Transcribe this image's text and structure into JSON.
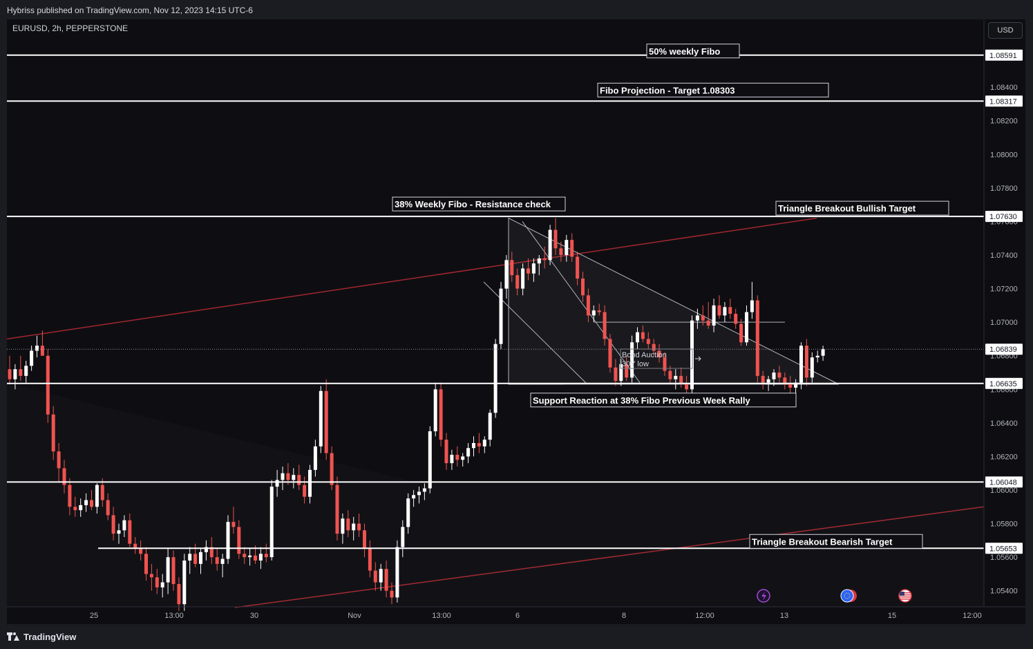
{
  "publisher_line": "Hybriss published on TradingView.com, Nov 12, 2023 14:15 UTC-6",
  "footer": {
    "brand": "TradingView"
  },
  "colors": {
    "bull": "#ffffff",
    "bear": "#f05350",
    "channel": "#a3262f",
    "hline": "#ffffff",
    "background": "#0e0e12",
    "icon_purple": "#a64ad8",
    "icon_red": "#d93640",
    "icon_blue": "#2962ff"
  },
  "chart_data": {
    "type": "candlestick",
    "symbol": "EURUSD, 2h, PEPPERSTONE",
    "currency": "USD",
    "ylim": [
      1.053,
      1.088
    ],
    "xlim": [
      "Oct 23 18:00",
      "Nov 15 20:00"
    ],
    "current_price": 1.06839,
    "x_ticks": [
      "25",
      "13:00",
      "30",
      "Nov",
      "13:00",
      "6",
      "8",
      "12:00",
      "13",
      "15",
      "12:00"
    ],
    "y_ticks": [
      1.084,
      1.082,
      1.08,
      1.078,
      1.076,
      1.074,
      1.072,
      1.07,
      1.068,
      1.066,
      1.064,
      1.062,
      1.06,
      1.058,
      1.056,
      1.054
    ],
    "horizontal_levels": [
      {
        "price": 1.08591,
        "label": "1.08591"
      },
      {
        "price": 1.08317,
        "label": "1.08317"
      },
      {
        "price": 1.0763,
        "label": "1.07630"
      },
      {
        "price": 1.06635,
        "label": "1.06635"
      },
      {
        "price": 1.06048,
        "label": "1.06048"
      },
      {
        "price": 1.05653,
        "label": "1.05653"
      }
    ],
    "annotations": [
      {
        "text": "50% weekly Fibo",
        "level": 1.08591
      },
      {
        "text": "Fibo Projection - Target 1.08303",
        "level": 1.08317
      },
      {
        "text": "38% Weekly Fibo - Resistance check",
        "level": 1.0763
      },
      {
        "text": "Triangle Breakout Bullish Target",
        "level": 1.0763
      },
      {
        "text": "Support Reaction at 38% Fibo Previous Week Rally",
        "level": 1.06635
      },
      {
        "text": "Triangle Breakout Bearish Target",
        "level": 1.05653
      },
      {
        "text": "Bond Auction",
        "level": 1.068
      },
      {
        "text": "30Y low",
        "level": 1.0675
      }
    ],
    "candles": [
      [
        1.0672,
        1.068,
        1.0663,
        1.0666
      ],
      [
        1.0666,
        1.0675,
        1.066,
        1.0672
      ],
      [
        1.0672,
        1.068,
        1.0665,
        1.0668
      ],
      [
        1.0668,
        1.0677,
        1.0664,
        1.0674
      ],
      [
        1.0674,
        1.0686,
        1.0671,
        1.0683
      ],
      [
        1.0683,
        1.0692,
        1.0679,
        1.0686
      ],
      [
        1.0686,
        1.0695,
        1.0682,
        1.068
      ],
      [
        1.068,
        1.0684,
        1.064,
        1.0645
      ],
      [
        1.0645,
        1.065,
        1.0618,
        1.0623
      ],
      [
        1.0623,
        1.0628,
        1.0605,
        1.0613
      ],
      [
        1.0613,
        1.0618,
        1.0598,
        1.0603
      ],
      [
        1.0603,
        1.0607,
        1.0585,
        1.059
      ],
      [
        1.059,
        1.0596,
        1.0584,
        1.0588
      ],
      [
        1.0588,
        1.0595,
        1.0584,
        1.0591
      ],
      [
        1.0591,
        1.0598,
        1.0587,
        1.0594
      ],
      [
        1.0594,
        1.06,
        1.0588,
        1.059
      ],
      [
        1.059,
        1.0604,
        1.0586,
        1.0603
      ],
      [
        1.0603,
        1.0607,
        1.059,
        1.0594
      ],
      [
        1.0594,
        1.0598,
        1.0582,
        1.0585
      ],
      [
        1.0585,
        1.059,
        1.057,
        1.0574
      ],
      [
        1.0574,
        1.058,
        1.0568,
        1.0576
      ],
      [
        1.0576,
        1.0585,
        1.0572,
        1.0582
      ],
      [
        1.0582,
        1.0586,
        1.0566,
        1.0568
      ],
      [
        1.0568,
        1.0572,
        1.0562,
        1.0565
      ],
      [
        1.0565,
        1.057,
        1.0558,
        1.0562
      ],
      [
        1.0562,
        1.0566,
        1.0546,
        1.055
      ],
      [
        1.055,
        1.0556,
        1.054,
        1.0548
      ],
      [
        1.0548,
        1.0553,
        1.0538,
        1.0542
      ],
      [
        1.0542,
        1.055,
        1.0536,
        1.0545
      ],
      [
        1.0545,
        1.0565,
        1.0538,
        1.056
      ],
      [
        1.056,
        1.0564,
        1.054,
        1.0544
      ],
      [
        1.0544,
        1.0548,
        1.0528,
        1.0532
      ],
      [
        1.0532,
        1.0562,
        1.0528,
        1.0558
      ],
      [
        1.0558,
        1.0566,
        1.055,
        1.0562
      ],
      [
        1.0562,
        1.0568,
        1.0554,
        1.0556
      ],
      [
        1.0556,
        1.0565,
        1.055,
        1.0563
      ],
      [
        1.0563,
        1.057,
        1.0558,
        1.0566
      ],
      [
        1.0566,
        1.0572,
        1.0556,
        1.056
      ],
      [
        1.056,
        1.0565,
        1.0552,
        1.0556
      ],
      [
        1.0556,
        1.0562,
        1.0548,
        1.0559
      ],
      [
        1.0559,
        1.0585,
        1.0556,
        1.0581
      ],
      [
        1.0581,
        1.059,
        1.0574,
        1.0578
      ],
      [
        1.0578,
        1.0582,
        1.0559,
        1.0562
      ],
      [
        1.0562,
        1.0566,
        1.0556,
        1.056
      ],
      [
        1.056,
        1.0565,
        1.0555,
        1.0561
      ],
      [
        1.0561,
        1.0567,
        1.0556,
        1.0558
      ],
      [
        1.0558,
        1.0566,
        1.0553,
        1.0562
      ],
      [
        1.0562,
        1.0568,
        1.0557,
        1.056
      ],
      [
        1.056,
        1.0606,
        1.0558,
        1.0602
      ],
      [
        1.0602,
        1.0612,
        1.0596,
        1.0606
      ],
      [
        1.0606,
        1.0614,
        1.06,
        1.061
      ],
      [
        1.061,
        1.0616,
        1.0603,
        1.0606
      ],
      [
        1.0606,
        1.0613,
        1.0601,
        1.0609
      ],
      [
        1.0609,
        1.0615,
        1.06,
        1.0603
      ],
      [
        1.0603,
        1.0608,
        1.0592,
        1.0596
      ],
      [
        1.0596,
        1.0615,
        1.0592,
        1.0612
      ],
      [
        1.0612,
        1.063,
        1.0608,
        1.0626
      ],
      [
        1.0626,
        1.0662,
        1.0622,
        1.0659
      ],
      [
        1.0659,
        1.0666,
        1.0618,
        1.0622
      ],
      [
        1.0622,
        1.0626,
        1.06,
        1.0603
      ],
      [
        1.0603,
        1.0608,
        1.057,
        1.0574
      ],
      [
        1.0574,
        1.0586,
        1.0568,
        1.0583
      ],
      [
        1.0583,
        1.0588,
        1.0572,
        1.0576
      ],
      [
        1.0576,
        1.0584,
        1.057,
        1.058
      ],
      [
        1.058,
        1.0586,
        1.0572,
        1.0576
      ],
      [
        1.0576,
        1.058,
        1.056,
        1.0565
      ],
      [
        1.0565,
        1.057,
        1.0548,
        1.0552
      ],
      [
        1.0552,
        1.0557,
        1.054,
        1.0545
      ],
      [
        1.0545,
        1.0556,
        1.054,
        1.0553
      ],
      [
        1.0553,
        1.0558,
        1.0536,
        1.054
      ],
      [
        1.054,
        1.0545,
        1.0532,
        1.0536
      ],
      [
        1.0536,
        1.057,
        1.0533,
        1.0566
      ],
      [
        1.0566,
        1.0582,
        1.056,
        1.0578
      ],
      [
        1.0578,
        1.0598,
        1.0574,
        1.0595
      ],
      [
        1.0595,
        1.06,
        1.059,
        1.0597
      ],
      [
        1.0597,
        1.0602,
        1.0592,
        1.0599
      ],
      [
        1.0599,
        1.0604,
        1.0594,
        1.0601
      ],
      [
        1.0601,
        1.0638,
        1.0598,
        1.0635
      ],
      [
        1.0635,
        1.0664,
        1.0632,
        1.066
      ],
      [
        1.066,
        1.0664,
        1.0626,
        1.063
      ],
      [
        1.063,
        1.0634,
        1.0612,
        1.0616
      ],
      [
        1.0616,
        1.0624,
        1.0612,
        1.0621
      ],
      [
        1.0621,
        1.0626,
        1.0614,
        1.0618
      ],
      [
        1.0618,
        1.0622,
        1.0614,
        1.062
      ],
      [
        1.062,
        1.0628,
        1.0616,
        1.0625
      ],
      [
        1.0625,
        1.0632,
        1.062,
        1.0628
      ],
      [
        1.0628,
        1.0634,
        1.0622,
        1.0626
      ],
      [
        1.0626,
        1.0632,
        1.0622,
        1.063
      ],
      [
        1.063,
        1.0648,
        1.0626,
        1.0646
      ],
      [
        1.0646,
        1.069,
        1.0643,
        1.0687
      ],
      [
        1.0687,
        1.0724,
        1.0684,
        1.072
      ],
      [
        1.072,
        1.074,
        1.0714,
        1.0737
      ],
      [
        1.0737,
        1.0742,
        1.0724,
        1.0728
      ],
      [
        1.0728,
        1.0732,
        1.0716,
        1.072
      ],
      [
        1.072,
        1.0735,
        1.0716,
        1.0732
      ],
      [
        1.0732,
        1.0738,
        1.0725,
        1.0729
      ],
      [
        1.0729,
        1.0738,
        1.0724,
        1.0735
      ],
      [
        1.0735,
        1.074,
        1.0728,
        1.0738
      ],
      [
        1.0738,
        1.0745,
        1.0732,
        1.0737
      ],
      [
        1.0737,
        1.0758,
        1.0734,
        1.0755
      ],
      [
        1.0755,
        1.0762,
        1.074,
        1.0744
      ],
      [
        1.0744,
        1.0748,
        1.0736,
        1.074
      ],
      [
        1.074,
        1.0752,
        1.0736,
        1.0749
      ],
      [
        1.0749,
        1.0753,
        1.0736,
        1.0739
      ],
      [
        1.0739,
        1.0742,
        1.0722,
        1.0726
      ],
      [
        1.0726,
        1.073,
        1.0712,
        1.0716
      ],
      [
        1.0716,
        1.072,
        1.07,
        1.0704
      ],
      [
        1.0704,
        1.071,
        1.07,
        1.0707
      ],
      [
        1.0707,
        1.0711,
        1.0704,
        1.0706
      ],
      [
        1.0706,
        1.071,
        1.0686,
        1.069
      ],
      [
        1.069,
        1.0693,
        1.067,
        1.0673
      ],
      [
        1.0673,
        1.0678,
        1.0662,
        1.0665
      ],
      [
        1.0665,
        1.0678,
        1.0662,
        1.0675
      ],
      [
        1.0675,
        1.068,
        1.0665,
        1.0667
      ],
      [
        1.0667,
        1.0692,
        1.0664,
        1.0688
      ],
      [
        1.0688,
        1.0697,
        1.0684,
        1.0694
      ],
      [
        1.0694,
        1.0698,
        1.0688,
        1.069
      ],
      [
        1.069,
        1.0694,
        1.0684,
        1.0687
      ],
      [
        1.0687,
        1.069,
        1.068,
        1.0683
      ],
      [
        1.0683,
        1.0687,
        1.0676,
        1.0679
      ],
      [
        1.0679,
        1.0682,
        1.0668,
        1.0671
      ],
      [
        1.0671,
        1.0674,
        1.0663,
        1.0666
      ],
      [
        1.0666,
        1.0672,
        1.066,
        1.0668
      ],
      [
        1.0668,
        1.0673,
        1.0661,
        1.0663
      ],
      [
        1.0663,
        1.0668,
        1.0656,
        1.066
      ],
      [
        1.066,
        1.0704,
        1.0657,
        1.0701
      ],
      [
        1.0701,
        1.0708,
        1.0696,
        1.0704
      ],
      [
        1.0704,
        1.071,
        1.0698,
        1.0701
      ],
      [
        1.0701,
        1.0712,
        1.0696,
        1.0698
      ],
      [
        1.0698,
        1.0714,
        1.0694,
        1.071
      ],
      [
        1.071,
        1.0716,
        1.0702,
        1.0704
      ],
      [
        1.0704,
        1.0712,
        1.07,
        1.0709
      ],
      [
        1.0709,
        1.0714,
        1.0702,
        1.0705
      ],
      [
        1.0705,
        1.0708,
        1.0696,
        1.0699
      ],
      [
        1.0699,
        1.0702,
        1.0686,
        1.0688
      ],
      [
        1.0688,
        1.071,
        1.0686,
        1.0706
      ],
      [
        1.0706,
        1.0724,
        1.0702,
        1.0713
      ],
      [
        1.0713,
        1.0716,
        1.0664,
        1.0668
      ],
      [
        1.0668,
        1.0671,
        1.066,
        1.0664
      ],
      [
        1.0664,
        1.0668,
        1.0659,
        1.0666
      ],
      [
        1.0666,
        1.0672,
        1.0662,
        1.067
      ],
      [
        1.067,
        1.0674,
        1.0664,
        1.0667
      ],
      [
        1.0667,
        1.067,
        1.066,
        1.0663
      ],
      [
        1.0663,
        1.0668,
        1.0656,
        1.0661
      ],
      [
        1.0661,
        1.0666,
        1.0656,
        1.0664
      ],
      [
        1.0664,
        1.0688,
        1.066,
        1.0686
      ],
      [
        1.0686,
        1.069,
        1.0662,
        1.0667
      ],
      [
        1.0667,
        1.0682,
        1.0664,
        1.0679
      ],
      [
        1.0679,
        1.0683,
        1.0676,
        1.068
      ],
      [
        1.068,
        1.0686,
        1.0677,
        1.0684
      ]
    ]
  }
}
